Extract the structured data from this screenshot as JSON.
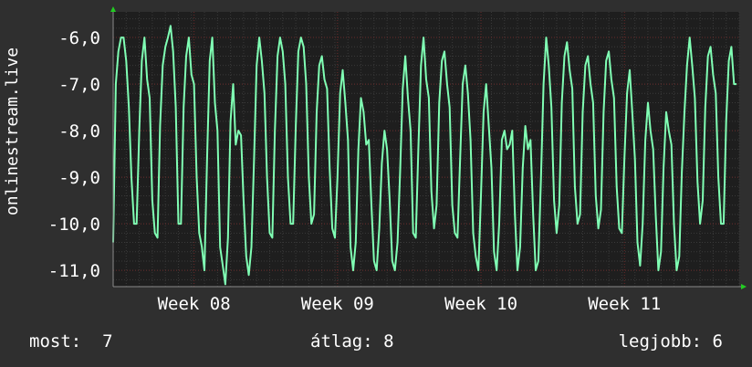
{
  "chart_data": {
    "type": "line",
    "ylabel": "onlinestream.live",
    "ylim": [
      -11.35,
      -5.45
    ],
    "yticks": [
      -6,
      -7,
      -8,
      -9,
      -10,
      -11
    ],
    "ytick_labels": [
      "-6,0",
      "-7,0",
      "-8,0",
      "-9,0",
      "-10,0",
      "-11,0"
    ],
    "x_range": [
      0,
      48
    ],
    "xticks": [
      {
        "x": 6.2,
        "label": "Week 08"
      },
      {
        "x": 17.2,
        "label": "Week 09"
      },
      {
        "x": 28.2,
        "label": "Week 10"
      },
      {
        "x": 39.2,
        "label": "Week 11"
      }
    ],
    "grid": true,
    "series": [
      {
        "color": "#80ffb4",
        "values": [
          [
            0.0,
            -10.4
          ],
          [
            0.2,
            -7.0
          ],
          [
            0.4,
            -6.3
          ],
          [
            0.6,
            -6.0
          ],
          [
            0.8,
            -6.0
          ],
          [
            1.0,
            -6.5
          ],
          [
            1.2,
            -7.5
          ],
          [
            1.4,
            -9.0
          ],
          [
            1.6,
            -10.0
          ],
          [
            1.8,
            -10.0
          ],
          [
            2.0,
            -8.0
          ],
          [
            2.2,
            -6.5
          ],
          [
            2.4,
            -6.0
          ],
          [
            2.6,
            -6.9
          ],
          [
            2.8,
            -7.3
          ],
          [
            3.0,
            -9.5
          ],
          [
            3.2,
            -10.2
          ],
          [
            3.4,
            -10.3
          ],
          [
            3.6,
            -7.9
          ],
          [
            3.8,
            -6.6
          ],
          [
            4.0,
            -6.2
          ],
          [
            4.2,
            -6.0
          ],
          [
            4.4,
            -5.75
          ],
          [
            4.6,
            -6.3
          ],
          [
            4.8,
            -7.5
          ],
          [
            5.0,
            -10.0
          ],
          [
            5.2,
            -10.0
          ],
          [
            5.4,
            -7.5
          ],
          [
            5.6,
            -6.4
          ],
          [
            5.8,
            -6.0
          ],
          [
            6.0,
            -6.8
          ],
          [
            6.2,
            -7.0
          ],
          [
            6.4,
            -9.0
          ],
          [
            6.6,
            -10.2
          ],
          [
            6.8,
            -10.5
          ],
          [
            7.0,
            -11.0
          ],
          [
            7.2,
            -8.6
          ],
          [
            7.4,
            -6.5
          ],
          [
            7.6,
            -6.0
          ],
          [
            7.8,
            -7.4
          ],
          [
            8.0,
            -8.0
          ],
          [
            8.2,
            -10.5
          ],
          [
            8.4,
            -10.9
          ],
          [
            8.6,
            -11.3
          ],
          [
            8.8,
            -10.3
          ],
          [
            9.0,
            -7.8
          ],
          [
            9.2,
            -7.0
          ],
          [
            9.4,
            -8.3
          ],
          [
            9.6,
            -8.0
          ],
          [
            9.8,
            -8.1
          ],
          [
            10.0,
            -9.5
          ],
          [
            10.2,
            -10.7
          ],
          [
            10.4,
            -11.1
          ],
          [
            10.6,
            -10.5
          ],
          [
            10.8,
            -8.6
          ],
          [
            11.0,
            -6.6
          ],
          [
            11.2,
            -6.0
          ],
          [
            11.4,
            -6.5
          ],
          [
            11.6,
            -7.2
          ],
          [
            11.8,
            -9.0
          ],
          [
            12.0,
            -10.2
          ],
          [
            12.2,
            -10.3
          ],
          [
            12.4,
            -8.0
          ],
          [
            12.6,
            -6.4
          ],
          [
            12.8,
            -6.0
          ],
          [
            13.0,
            -6.3
          ],
          [
            13.2,
            -7.0
          ],
          [
            13.4,
            -9.0
          ],
          [
            13.6,
            -10.0
          ],
          [
            13.8,
            -10.0
          ],
          [
            14.0,
            -7.9
          ],
          [
            14.2,
            -6.3
          ],
          [
            14.4,
            -6.0
          ],
          [
            14.6,
            -6.2
          ],
          [
            14.8,
            -7.0
          ],
          [
            15.0,
            -9.0
          ],
          [
            15.2,
            -10.0
          ],
          [
            15.4,
            -9.8
          ],
          [
            15.6,
            -7.6
          ],
          [
            15.8,
            -6.6
          ],
          [
            16.0,
            -6.4
          ],
          [
            16.2,
            -6.9
          ],
          [
            16.4,
            -7.1
          ],
          [
            16.6,
            -8.8
          ],
          [
            16.8,
            -10.1
          ],
          [
            17.0,
            -10.3
          ],
          [
            17.2,
            -9.0
          ],
          [
            17.4,
            -7.2
          ],
          [
            17.6,
            -6.7
          ],
          [
            17.8,
            -7.4
          ],
          [
            18.0,
            -8.2
          ],
          [
            18.2,
            -10.5
          ],
          [
            18.4,
            -11.0
          ],
          [
            18.6,
            -10.4
          ],
          [
            18.8,
            -8.4
          ],
          [
            19.0,
            -7.3
          ],
          [
            19.2,
            -7.6
          ],
          [
            19.4,
            -8.3
          ],
          [
            19.6,
            -8.2
          ],
          [
            19.8,
            -9.6
          ],
          [
            20.0,
            -10.8
          ],
          [
            20.2,
            -11.0
          ],
          [
            20.4,
            -10.1
          ],
          [
            20.6,
            -8.7
          ],
          [
            20.8,
            -8.0
          ],
          [
            21.0,
            -8.4
          ],
          [
            21.2,
            -9.5
          ],
          [
            21.4,
            -10.8
          ],
          [
            21.6,
            -11.0
          ],
          [
            21.8,
            -10.4
          ],
          [
            22.0,
            -8.9
          ],
          [
            22.2,
            -7.1
          ],
          [
            22.4,
            -6.4
          ],
          [
            22.6,
            -7.3
          ],
          [
            22.8,
            -8.0
          ],
          [
            23.0,
            -10.2
          ],
          [
            23.2,
            -10.3
          ],
          [
            23.4,
            -8.4
          ],
          [
            23.6,
            -6.6
          ],
          [
            23.8,
            -6.0
          ],
          [
            24.0,
            -6.9
          ],
          [
            24.2,
            -7.3
          ],
          [
            24.4,
            -9.3
          ],
          [
            24.6,
            -10.1
          ],
          [
            24.8,
            -9.6
          ],
          [
            25.0,
            -7.4
          ],
          [
            25.2,
            -6.5
          ],
          [
            25.4,
            -6.3
          ],
          [
            25.6,
            -7.0
          ],
          [
            25.8,
            -7.5
          ],
          [
            26.0,
            -9.6
          ],
          [
            26.2,
            -10.2
          ],
          [
            26.4,
            -10.3
          ],
          [
            26.6,
            -8.6
          ],
          [
            26.8,
            -7.0
          ],
          [
            27.0,
            -6.6
          ],
          [
            27.2,
            -7.2
          ],
          [
            27.4,
            -8.2
          ],
          [
            27.6,
            -10.2
          ],
          [
            27.8,
            -10.7
          ],
          [
            28.0,
            -11.0
          ],
          [
            28.2,
            -9.4
          ],
          [
            28.4,
            -7.6
          ],
          [
            28.6,
            -7.0
          ],
          [
            28.8,
            -7.9
          ],
          [
            29.0,
            -8.8
          ],
          [
            29.2,
            -10.6
          ],
          [
            29.4,
            -11.0
          ],
          [
            29.6,
            -10.0
          ],
          [
            29.8,
            -8.2
          ],
          [
            30.0,
            -8.0
          ],
          [
            30.2,
            -8.4
          ],
          [
            30.4,
            -8.3
          ],
          [
            30.6,
            -8.0
          ],
          [
            30.8,
            -9.8
          ],
          [
            31.0,
            -11.0
          ],
          [
            31.2,
            -10.5
          ],
          [
            31.4,
            -8.8
          ],
          [
            31.6,
            -7.9
          ],
          [
            31.8,
            -8.4
          ],
          [
            32.0,
            -8.2
          ],
          [
            32.2,
            -9.8
          ],
          [
            32.4,
            -11.0
          ],
          [
            32.6,
            -10.8
          ],
          [
            32.8,
            -9.0
          ],
          [
            33.0,
            -7.0
          ],
          [
            33.2,
            -6.0
          ],
          [
            33.4,
            -6.6
          ],
          [
            33.6,
            -7.5
          ],
          [
            33.8,
            -9.5
          ],
          [
            34.0,
            -10.2
          ],
          [
            34.2,
            -9.6
          ],
          [
            34.4,
            -7.4
          ],
          [
            34.6,
            -6.4
          ],
          [
            34.8,
            -6.1
          ],
          [
            35.0,
            -6.7
          ],
          [
            35.2,
            -7.1
          ],
          [
            35.4,
            -9.2
          ],
          [
            35.6,
            -10.0
          ],
          [
            35.8,
            -9.8
          ],
          [
            36.0,
            -7.6
          ],
          [
            36.2,
            -6.6
          ],
          [
            36.4,
            -6.4
          ],
          [
            36.6,
            -7.0
          ],
          [
            36.8,
            -7.4
          ],
          [
            37.0,
            -9.4
          ],
          [
            37.2,
            -10.1
          ],
          [
            37.4,
            -9.7
          ],
          [
            37.6,
            -7.6
          ],
          [
            37.8,
            -6.5
          ],
          [
            38.0,
            -6.3
          ],
          [
            38.2,
            -6.9
          ],
          [
            38.4,
            -7.3
          ],
          [
            38.6,
            -9.2
          ],
          [
            38.8,
            -10.1
          ],
          [
            39.0,
            -10.2
          ],
          [
            39.2,
            -8.6
          ],
          [
            39.4,
            -7.2
          ],
          [
            39.6,
            -6.7
          ],
          [
            39.8,
            -7.6
          ],
          [
            40.0,
            -8.6
          ],
          [
            40.2,
            -10.4
          ],
          [
            40.4,
            -10.9
          ],
          [
            40.6,
            -10.0
          ],
          [
            40.8,
            -8.2
          ],
          [
            41.0,
            -7.4
          ],
          [
            41.2,
            -8.0
          ],
          [
            41.4,
            -8.4
          ],
          [
            41.6,
            -9.8
          ],
          [
            41.8,
            -11.0
          ],
          [
            42.0,
            -10.6
          ],
          [
            42.2,
            -8.8
          ],
          [
            42.4,
            -7.6
          ],
          [
            42.6,
            -8.0
          ],
          [
            42.8,
            -8.3
          ],
          [
            43.0,
            -10.0
          ],
          [
            43.2,
            -11.0
          ],
          [
            43.4,
            -10.7
          ],
          [
            43.6,
            -8.9
          ],
          [
            43.8,
            -7.6
          ],
          [
            44.0,
            -6.6
          ],
          [
            44.2,
            -6.0
          ],
          [
            44.4,
            -6.6
          ],
          [
            44.6,
            -7.3
          ],
          [
            44.8,
            -9.1
          ],
          [
            45.0,
            -10.0
          ],
          [
            45.2,
            -9.5
          ],
          [
            45.4,
            -7.5
          ],
          [
            45.6,
            -6.4
          ],
          [
            45.8,
            -6.2
          ],
          [
            46.0,
            -6.8
          ],
          [
            46.2,
            -7.2
          ],
          [
            46.4,
            -9.0
          ],
          [
            46.6,
            -10.0
          ],
          [
            46.8,
            -10.0
          ],
          [
            47.0,
            -7.8
          ],
          [
            47.2,
            -6.5
          ],
          [
            47.4,
            -6.2
          ],
          [
            47.6,
            -7.0
          ],
          [
            47.8,
            -7.0
          ]
        ]
      }
    ]
  },
  "footer": {
    "current": "most:  7",
    "average": "átlag: 8",
    "best": "legjobb: 6"
  }
}
